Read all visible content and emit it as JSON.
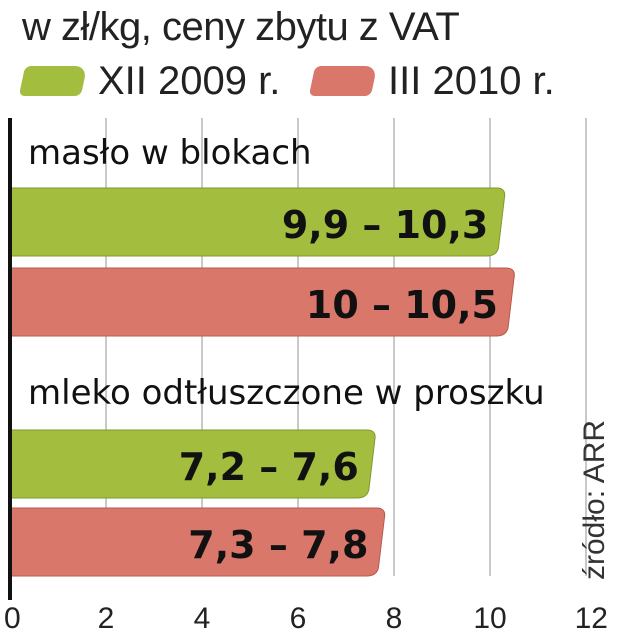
{
  "subtitle": "w zł/kg, ceny zbytu z VAT",
  "source": "źródło: ARR",
  "colors": {
    "green": "#a3bd3f",
    "green_dark": "#7f9a2a",
    "red": "#d9776b",
    "red_dark": "#b9584d",
    "grid": "#c9c9c9",
    "axis": "#111111"
  },
  "legend": [
    {
      "label": "XII 2009 r.",
      "color": "#a3bd3f"
    },
    {
      "label": "III 2010 r.",
      "color": "#d9776b"
    }
  ],
  "chart_data": {
    "type": "bar",
    "orientation": "horizontal",
    "categories": [
      "masło w blokach",
      "mleko odtłuszczone w proszku"
    ],
    "series": [
      {
        "name": "XII 2009 r.",
        "values": [
          [
            9.9,
            10.3
          ],
          [
            7.2,
            7.6
          ]
        ],
        "labels": [
          "9,9 – 10,3",
          "7,2 – 7,6"
        ]
      },
      {
        "name": "III 2010 r.",
        "values": [
          [
            10.0,
            10.5
          ],
          [
            7.3,
            7.8
          ]
        ],
        "labels": [
          "10 – 10,5",
          "7,3 – 7,8"
        ]
      }
    ],
    "xlim": [
      0,
      12
    ],
    "xticks": [
      "0",
      "2",
      "4",
      "6",
      "8",
      "10",
      "12"
    ],
    "grid": true,
    "legend_position": "top"
  }
}
